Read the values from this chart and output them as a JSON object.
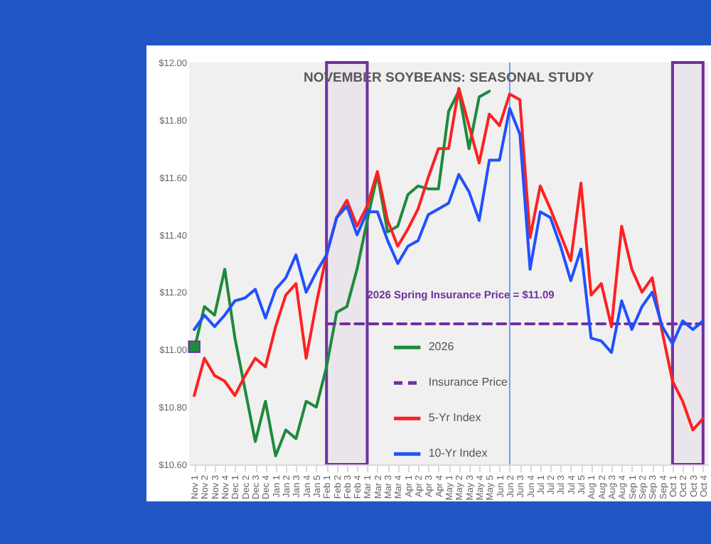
{
  "chart_data": {
    "type": "line",
    "title": "NOVEMBER SOYBEANS: SEASONAL STUDY",
    "categories": [
      "Nov 1",
      "Nov 2",
      "Nov 3",
      "Nov 4",
      "Dec 1",
      "Dec 2",
      "Dec 3",
      "Dec 4",
      "Jan 1",
      "Jan 2",
      "Jan 3",
      "Jan 4",
      "Jan 5",
      "Feb 1",
      "Feb 2",
      "Feb 3",
      "Feb 4",
      "Mar 1",
      "Mar 2",
      "Mar 3",
      "Mar 4",
      "Apr 1",
      "Apr 2",
      "Apr 3",
      "Apr 4",
      "May 1",
      "May 2",
      "May 3",
      "May 4",
      "May 5",
      "Jun 1",
      "Jun 2",
      "Jun 3",
      "Jun 4",
      "Jul 1",
      "Jul 2",
      "Jul 3",
      "Jul 4",
      "Jul 5",
      "Aug 1",
      "Aug 2",
      "Aug 3",
      "Aug 4",
      "Sep 1",
      "Sep 2",
      "Sep 3",
      "Sep 4",
      "Oct 1",
      "Oct 2",
      "Oct 3",
      "Oct 4"
    ],
    "series": [
      {
        "name": "2026",
        "color": "#1e8a3c",
        "values": [
          11.0,
          11.15,
          11.12,
          11.28,
          11.04,
          10.86,
          10.68,
          10.82,
          10.63,
          10.72,
          10.69,
          10.82,
          10.8,
          10.94,
          11.13,
          11.15,
          11.28,
          11.45,
          11.61,
          11.41,
          11.43,
          11.54,
          11.57,
          11.56,
          11.56,
          11.83,
          11.9,
          11.7,
          11.88,
          11.9,
          null,
          null,
          null,
          null,
          null,
          null,
          null,
          null,
          null,
          null,
          null,
          null,
          null,
          null,
          null,
          null,
          null,
          null,
          null,
          null,
          null
        ]
      },
      {
        "name": "Insurance Price",
        "color": "#7030a0",
        "line_style": "dashed",
        "values": [
          null,
          null,
          null,
          null,
          null,
          null,
          null,
          null,
          null,
          null,
          null,
          null,
          null,
          11.09,
          11.09,
          11.09,
          11.09,
          11.09,
          11.09,
          11.09,
          11.09,
          11.09,
          11.09,
          11.09,
          11.09,
          11.09,
          11.09,
          11.09,
          11.09,
          11.09,
          11.09,
          11.09,
          11.09,
          11.09,
          11.09,
          11.09,
          11.09,
          11.09,
          11.09,
          11.09,
          11.09,
          11.09,
          11.09,
          11.09,
          11.09,
          11.09,
          11.09,
          11.09,
          11.09,
          11.09,
          11.09
        ]
      },
      {
        "name": "5-Yr Index",
        "color": "#ff2020",
        "values": [
          10.84,
          10.97,
          10.91,
          10.89,
          10.84,
          10.91,
          10.97,
          10.94,
          11.08,
          11.19,
          11.23,
          10.97,
          11.16,
          11.33,
          11.46,
          11.52,
          11.43,
          11.5,
          11.62,
          11.45,
          11.36,
          11.42,
          11.49,
          11.6,
          11.7,
          11.7,
          11.91,
          11.78,
          11.65,
          11.82,
          11.78,
          11.89,
          11.87,
          11.39,
          11.57,
          11.49,
          11.4,
          11.31,
          11.58,
          11.19,
          11.23,
          11.08,
          11.43,
          11.28,
          11.2,
          11.25,
          11.06,
          10.89,
          10.82,
          10.72,
          10.76
        ]
      },
      {
        "name": "10-Yr Index",
        "color": "#2050ff",
        "values": [
          11.07,
          11.12,
          11.08,
          11.12,
          11.17,
          11.18,
          11.21,
          11.11,
          11.21,
          11.25,
          11.33,
          11.2,
          11.27,
          11.33,
          11.46,
          11.5,
          11.4,
          11.48,
          11.48,
          11.38,
          11.3,
          11.36,
          11.38,
          11.47,
          11.49,
          11.51,
          11.61,
          11.55,
          11.45,
          11.66,
          11.66,
          11.84,
          11.75,
          11.28,
          11.48,
          11.46,
          11.36,
          11.24,
          11.35,
          11.04,
          11.03,
          10.99,
          11.17,
          11.07,
          11.15,
          11.2,
          11.08,
          11.02,
          11.1,
          11.07,
          11.1
        ]
      },
      {
        "type": "scatter",
        "marker": "square",
        "color": "#1e8a3c",
        "values": [
          11.01,
          null,
          null,
          null,
          null,
          null,
          null,
          null,
          null,
          null,
          null,
          null,
          null,
          null,
          null,
          null,
          null,
          null,
          null,
          null,
          null,
          null,
          null,
          null,
          null,
          null,
          null,
          null,
          null,
          null,
          null,
          null,
          null,
          null,
          null,
          null,
          null,
          null,
          null,
          null,
          null,
          null,
          null,
          null,
          null,
          null,
          null,
          null,
          null,
          null,
          null
        ]
      }
    ],
    "ylim": [
      10.6,
      12.0
    ],
    "yticks": [
      {
        "value": 10.6,
        "label": "$10.60"
      },
      {
        "value": 10.8,
        "label": "$10.80"
      },
      {
        "value": 11.0,
        "label": "$11.00"
      },
      {
        "value": 11.2,
        "label": "$11.20"
      },
      {
        "value": 11.4,
        "label": "$11.40"
      },
      {
        "value": 11.6,
        "label": "$11.60"
      },
      {
        "value": 11.8,
        "label": "$11.80"
      },
      {
        "value": 12.0,
        "label": "$12.00"
      }
    ],
    "bands": [
      {
        "axis": "x",
        "from": "Feb 1",
        "to": "Mar 1",
        "color": "#7030a0"
      },
      {
        "axis": "x",
        "from": "Oct 1",
        "to": "Oct 4",
        "color": "#7030a0"
      }
    ],
    "ref_lines": [
      {
        "axis": "x",
        "value": "Jun 2",
        "color": "#6f9cf0"
      }
    ],
    "annotations": [
      {
        "text": "2026 Spring Insurance Price = $11.09",
        "x": "Mar 1",
        "y": 11.09
      }
    ],
    "legend": "bottom"
  }
}
